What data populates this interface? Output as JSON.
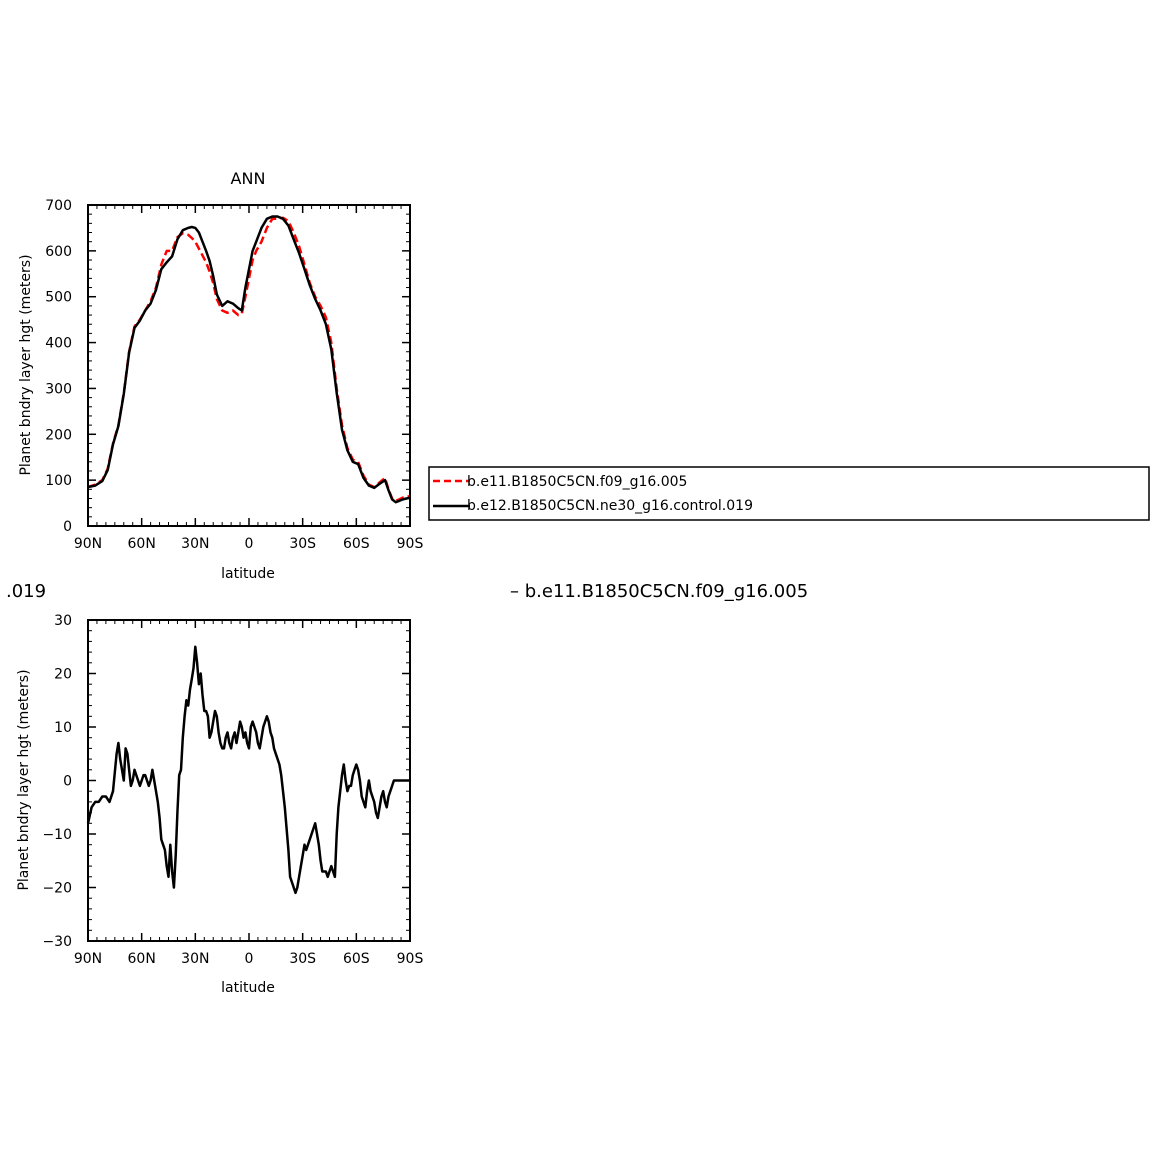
{
  "chart_data": [
    {
      "type": "line",
      "title": "ANN",
      "xlabel": "latitude",
      "ylabel": "Planet bndry layer hgt (meters)",
      "xlim": [
        -90,
        90
      ],
      "ylim": [
        0,
        700
      ],
      "yticks": [
        0,
        100,
        200,
        300,
        400,
        500,
        600,
        700
      ],
      "xticks": [
        -90,
        -60,
        -30,
        0,
        30,
        60,
        90
      ],
      "xtick_labels": [
        "90N",
        "60N",
        "30N",
        "0",
        "30S",
        "60S",
        "90S"
      ],
      "grid": false,
      "legend": "right",
      "series": [
        {
          "name": "b.e11.B1850C5CN.f09_g16.005",
          "color": "#ff0000",
          "dash": true,
          "x": [
            -90,
            -86,
            -82,
            -79,
            -76,
            -73,
            -70,
            -67,
            -64,
            -61,
            -58,
            -55,
            -52,
            -49,
            -46,
            -43,
            -40,
            -37,
            -34,
            -32,
            -30,
            -28,
            -26,
            -24,
            -22,
            -20,
            -18,
            -15,
            -12,
            -9,
            -6,
            -4,
            -2,
            0,
            2,
            4,
            7,
            10,
            13,
            16,
            19,
            22,
            25,
            28,
            31,
            34,
            37,
            40,
            43,
            46,
            49,
            52,
            55,
            58,
            61,
            64,
            67,
            70,
            73,
            76,
            78,
            80,
            82,
            84,
            86,
            88,
            90
          ],
          "y": [
            85,
            90,
            100,
            125,
            180,
            220,
            290,
            380,
            435,
            450,
            470,
            490,
            520,
            570,
            600,
            600,
            630,
            638,
            635,
            628,
            620,
            605,
            590,
            575,
            555,
            530,
            495,
            470,
            465,
            470,
            460,
            463,
            500,
            540,
            580,
            600,
            620,
            650,
            670,
            670,
            672,
            665,
            640,
            610,
            570,
            530,
            500,
            480,
            455,
            400,
            300,
            220,
            170,
            145,
            140,
            110,
            90,
            85,
            95,
            105,
            80,
            60,
            55,
            58,
            62,
            64,
            65
          ]
        },
        {
          "name": "b.e12.B1850C5CN.ne30_g16.control.019",
          "color": "#000000",
          "dash": false,
          "x": [
            -90,
            -86,
            -82,
            -79,
            -76,
            -73,
            -70,
            -67,
            -64,
            -61,
            -58,
            -55,
            -52,
            -49,
            -46,
            -43,
            -40,
            -37,
            -34,
            -32,
            -30,
            -28,
            -26,
            -24,
            -22,
            -20,
            -18,
            -15,
            -12,
            -9,
            -6,
            -4,
            -2,
            0,
            2,
            4,
            7,
            10,
            13,
            16,
            19,
            22,
            25,
            28,
            31,
            34,
            37,
            40,
            43,
            46,
            49,
            52,
            55,
            58,
            61,
            64,
            67,
            70,
            73,
            76,
            78,
            80,
            82,
            84,
            86,
            88,
            90
          ],
          "y": [
            85,
            88,
            98,
            122,
            178,
            218,
            288,
            378,
            432,
            448,
            470,
            485,
            515,
            560,
            575,
            588,
            625,
            645,
            650,
            652,
            650,
            640,
            620,
            600,
            578,
            545,
            505,
            480,
            490,
            485,
            475,
            470,
            520,
            560,
            600,
            620,
            650,
            670,
            675,
            675,
            670,
            655,
            625,
            595,
            560,
            525,
            495,
            470,
            440,
            385,
            290,
            210,
            165,
            140,
            135,
            105,
            88,
            83,
            92,
            100,
            78,
            58,
            52,
            55,
            58,
            60,
            62
          ]
        }
      ]
    },
    {
      "type": "line",
      "title": "",
      "title_left": ".019",
      "title_right": "– b.e11.B1850C5CN.f09_g16.005",
      "xlabel": "latitude",
      "ylabel": "Planet bndry layer hgt (meters)",
      "xlim": [
        -90,
        90
      ],
      "ylim": [
        -30,
        30
      ],
      "yticks": [
        -30,
        -20,
        -10,
        0,
        10,
        20,
        30
      ],
      "ytick_labels": [
        "−30",
        "−20",
        "−10",
        "0",
        "10",
        "20",
        "30"
      ],
      "xticks": [
        -90,
        -60,
        -30,
        0,
        30,
        60,
        90
      ],
      "xtick_labels": [
        "90N",
        "60N",
        "30N",
        "0",
        "30S",
        "60S",
        "90S"
      ],
      "grid": false,
      "series": [
        {
          "color": "#000000",
          "x": [
            -90,
            -88,
            -86,
            -84,
            -82,
            -80,
            -78,
            -76,
            -74,
            -73,
            -72,
            -70,
            -69,
            -68,
            -67,
            -66,
            -65,
            -64,
            -63,
            -62,
            -61,
            -60,
            -59,
            -58,
            -57,
            -56,
            -55,
            -54,
            -53,
            -52,
            -51,
            -50,
            -49,
            -48,
            -47,
            -46,
            -45,
            -44,
            -43,
            -42,
            -41,
            -40,
            -39,
            -38,
            -37,
            -36,
            -35,
            -34,
            -33,
            -32,
            -31,
            -30,
            -29,
            -28,
            -27,
            -26,
            -25,
            -24,
            -23,
            -22,
            -21,
            -20,
            -19,
            -18,
            -17,
            -16,
            -15,
            -14,
            -13,
            -12,
            -11,
            -10,
            -9,
            -8,
            -7,
            -6,
            -5,
            -4,
            -3,
            -2,
            -1,
            0,
            1,
            2,
            3,
            4,
            5,
            6,
            7,
            8,
            9,
            10,
            11,
            12,
            13,
            14,
            15,
            16,
            17,
            18,
            19,
            20,
            21,
            22,
            23,
            24,
            25,
            26,
            27,
            28,
            29,
            30,
            31,
            32,
            33,
            34,
            35,
            36,
            37,
            38,
            39,
            40,
            41,
            42,
            43,
            44,
            45,
            46,
            47,
            48,
            49,
            50,
            51,
            52,
            53,
            54,
            55,
            56,
            57,
            58,
            59,
            60,
            61,
            62,
            63,
            64,
            65,
            66,
            67,
            68,
            69,
            70,
            71,
            72,
            73,
            74,
            75,
            76,
            77,
            78,
            79,
            80,
            81,
            82,
            83,
            84,
            85,
            86,
            87,
            88,
            89,
            90
          ],
          "y": [
            -8,
            -5,
            -4,
            -4,
            -3,
            -3,
            -4,
            -2,
            5,
            7,
            4,
            0,
            6,
            5,
            2,
            -1,
            0,
            2,
            1,
            0,
            -1,
            0,
            1,
            1,
            0,
            -1,
            0,
            2,
            0,
            -2,
            -4,
            -7,
            -11,
            -12,
            -13,
            -16,
            -18,
            -12,
            -17,
            -20,
            -14,
            -6,
            1,
            2,
            8,
            12,
            15,
            14,
            17,
            19,
            21,
            25,
            22,
            18,
            20,
            16,
            13,
            13,
            12,
            8,
            9,
            11,
            13,
            12,
            9,
            7,
            6,
            6,
            8,
            9,
            7,
            6,
            8,
            9,
            7,
            9,
            11,
            10,
            8,
            9,
            7,
            6,
            10,
            11,
            10,
            9,
            7,
            6,
            8,
            10,
            11,
            12,
            11,
            9,
            8,
            6,
            5,
            4,
            3,
            1,
            -2,
            -5,
            -9,
            -13,
            -18,
            -19,
            -20,
            -21,
            -20,
            -18,
            -16,
            -14,
            -12,
            -13,
            -12,
            -11,
            -10,
            -9,
            -8,
            -10,
            -12,
            -15,
            -17,
            -17,
            -17,
            -18,
            -17,
            -16,
            -17,
            -18,
            -10,
            -5,
            -2,
            1,
            3,
            0,
            -2,
            -1,
            -1,
            1,
            2,
            3,
            2,
            0,
            -3,
            -4,
            -5,
            -2,
            0,
            -2,
            -3,
            -4,
            -6,
            -7,
            -5,
            -3,
            -2,
            -4,
            -5,
            -3,
            -2,
            -1,
            0,
            0,
            0,
            0,
            0,
            0,
            0,
            0,
            0,
            0
          ]
        }
      ]
    }
  ]
}
